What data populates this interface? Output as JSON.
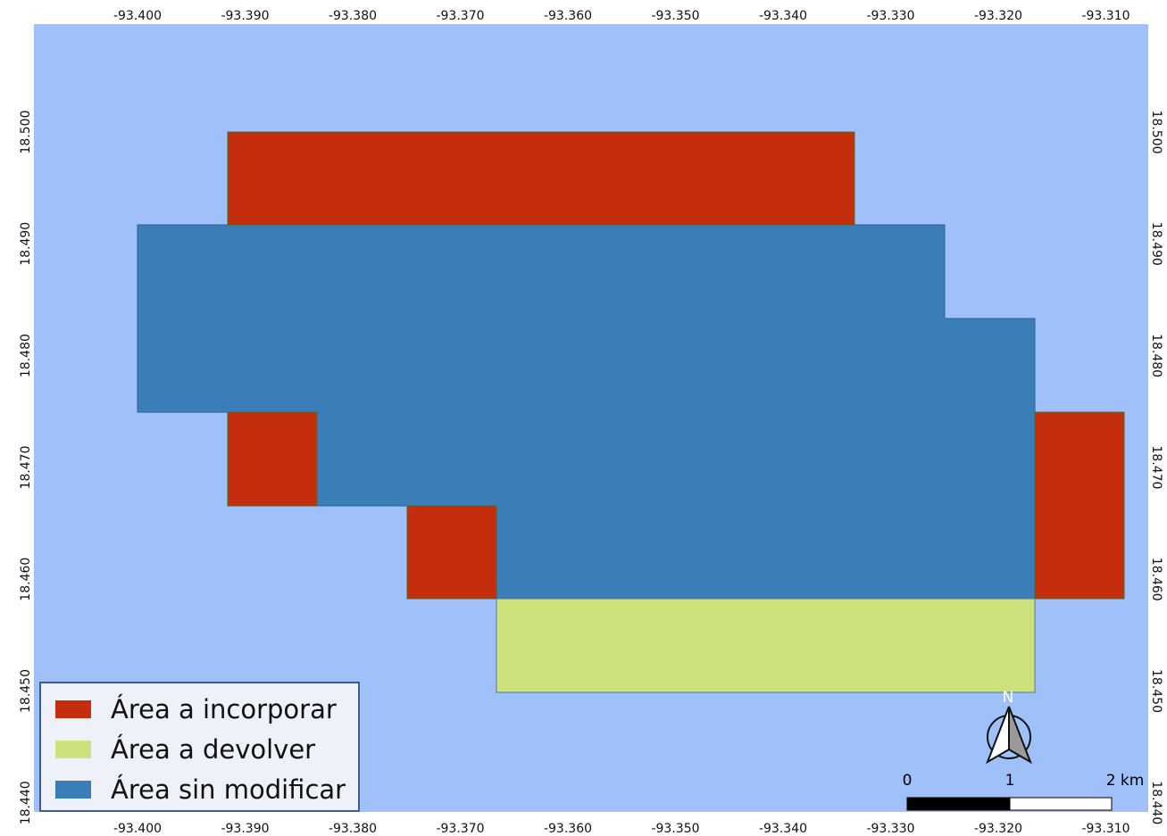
{
  "map": {
    "background_color": "#9fc0f8",
    "x_ticks": [
      "-93.400",
      "-93.390",
      "-93.380",
      "-93.370",
      "-93.360",
      "-93.350",
      "-93.340",
      "-93.330",
      "-93.320",
      "-93.310"
    ],
    "y_ticks": [
      "18.500",
      "18.490",
      "18.480",
      "18.470",
      "18.460",
      "18.450",
      "18.440"
    ]
  },
  "legend": {
    "items": [
      {
        "label": "Área a incorporar",
        "color": "#c52e0d"
      },
      {
        "label": "Área a devolver",
        "color": "#cde17c"
      },
      {
        "label": "Área sin modificar",
        "color": "#3a7db8"
      }
    ]
  },
  "north_arrow": {
    "label": "N"
  },
  "scale_bar": {
    "labels": [
      "0",
      "1",
      "2 km"
    ]
  }
}
